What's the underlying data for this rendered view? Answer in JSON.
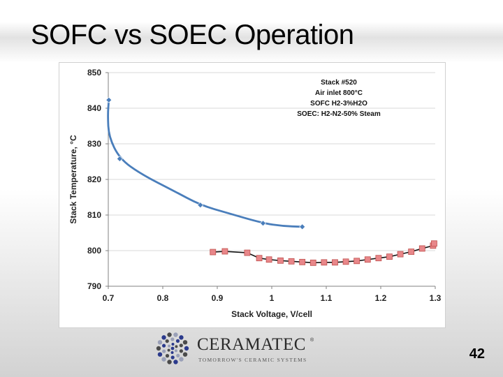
{
  "slide": {
    "title": "SOFC vs SOEC Operation",
    "page_number": "42"
  },
  "logo": {
    "name": "CERAMATEC",
    "registered": "®",
    "tagline": "TOMORROW'S CERAMIC SYSTEMS"
  },
  "colors": {
    "sofc_line": "#4a7ebb",
    "sofc_marker": "#4a7ebb",
    "soec_line": "#111111",
    "soec_marker_fill": "#e8878a",
    "soec_marker_stroke": "#c0504d",
    "grid": "#d9d9d9"
  },
  "chart_data": {
    "type": "scatter",
    "title": "",
    "xlabel": "Stack Voltage, V/cell",
    "ylabel": "Stack Temperature, °C",
    "xlim": [
      0.7,
      1.3
    ],
    "ylim": [
      790,
      850
    ],
    "xticks": [
      0.7,
      0.8,
      0.9,
      1.0,
      1.1,
      1.2,
      1.3
    ],
    "xtick_labels": [
      "0.7",
      "0.8",
      "0.9",
      "1",
      "1.1",
      "1.2",
      "1.3"
    ],
    "yticks": [
      790,
      800,
      810,
      820,
      830,
      840,
      850
    ],
    "ytick_labels": [
      "790",
      "800",
      "810",
      "820",
      "830",
      "840",
      "850"
    ],
    "grid": "horizontal",
    "annotation": [
      "Stack #520",
      "Air inlet 800°C",
      "SOFC H2-3%H2O",
      "SOEC: H2-N2-50% Steam"
    ],
    "series": [
      {
        "name": "SOFC",
        "marker": "diamond",
        "x": [
          0.701,
          0.721,
          0.869,
          0.984,
          1.056
        ],
        "y": [
          842.3,
          825.8,
          812.8,
          807.7,
          806.7
        ]
      },
      {
        "name": "SOEC",
        "marker": "square",
        "x": [
          0.892,
          0.914,
          0.955,
          0.977,
          0.995,
          1.016,
          1.036,
          1.056,
          1.076,
          1.096,
          1.116,
          1.136,
          1.156,
          1.176,
          1.196,
          1.216,
          1.236,
          1.256,
          1.276,
          1.296,
          1.298
        ],
        "y": [
          799.6,
          799.8,
          799.4,
          797.9,
          797.5,
          797.2,
          797.0,
          796.8,
          796.6,
          796.7,
          796.7,
          796.9,
          797.1,
          797.5,
          797.9,
          798.3,
          799.0,
          799.7,
          800.6,
          801.4,
          802.0
        ]
      }
    ]
  }
}
